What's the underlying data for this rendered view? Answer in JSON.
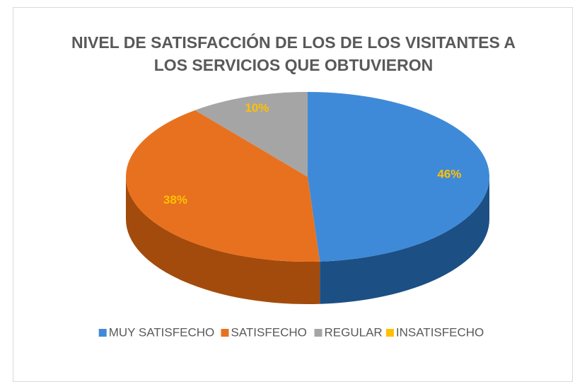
{
  "chart_data": {
    "type": "pie3d",
    "title": "NIVEL DE SATISFACCIÓN DE LOS DE LOS VISITANTES A LOS SERVICIOS QUE OBTUVIERON",
    "categories": [
      "MUY SATISFECHO",
      "SATISFECHO",
      "REGULAR",
      "INSATISFECHO"
    ],
    "values": [
      46,
      38,
      10,
      0
    ],
    "value_labels": [
      "46%",
      "38%",
      "10%",
      null
    ],
    "colors": [
      "#3f8ad8",
      "#e8711f",
      "#a5a5a5",
      "#ffc000"
    ],
    "side_colors": [
      "#1c4f84",
      "#a34b0c",
      "#6e6e6e",
      "#b38600"
    ],
    "label_color": "#ffc000",
    "legend": "bottom"
  }
}
